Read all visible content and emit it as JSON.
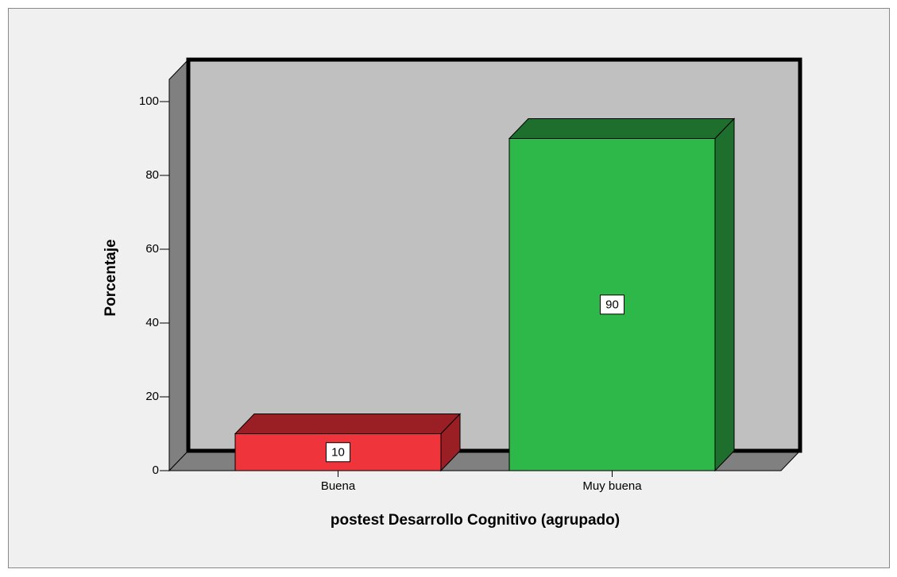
{
  "chart_data": {
    "type": "bar3d",
    "categories": [
      "Buena",
      "Muy buena"
    ],
    "values": [
      10,
      90
    ],
    "colors": [
      "#f0343c",
      "#2fb84a"
    ],
    "side_colors": [
      "#9a1f25",
      "#1e6f2d"
    ],
    "xlabel": "postest Desarrollo Cognitivo (agrupado)",
    "ylabel": "Porcentaje",
    "ylim": [
      0,
      106
    ],
    "yticks": [
      0,
      20,
      40,
      60,
      80,
      100
    ]
  }
}
